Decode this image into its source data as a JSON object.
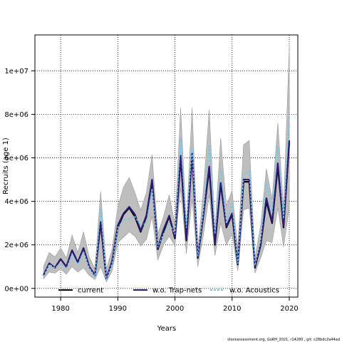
{
  "chart_data": {
    "type": "line",
    "xlabel": "Years",
    "ylabel": "Recruits (age 1)",
    "xlim": [
      1975.5,
      2021.5
    ],
    "ylim": [
      -400000,
      11650000
    ],
    "x_ticks": [
      1980,
      1990,
      2000,
      2010,
      2020
    ],
    "x_tick_labels": [
      "1980",
      "1990",
      "2000",
      "2010",
      "2020"
    ],
    "y_ticks": [
      0,
      2000000,
      4000000,
      6000000,
      8000000,
      10000000
    ],
    "y_tick_labels": [
      "0e+00",
      "2e+06",
      "4e+06",
      "6e+06",
      "8e+06",
      "1e+07"
    ],
    "grid": true,
    "legend_position": "bottom",
    "x": [
      1977,
      1978,
      1979,
      1980,
      1981,
      1982,
      1983,
      1984,
      1985,
      1986,
      1987,
      1988,
      1989,
      1990,
      1991,
      1992,
      1993,
      1994,
      1995,
      1996,
      1997,
      1998,
      1999,
      2000,
      2001,
      2002,
      2003,
      2004,
      2005,
      2006,
      2007,
      2008,
      2009,
      2010,
      2011,
      2012,
      2013,
      2014,
      2015,
      2016,
      2017,
      2018,
      2019,
      2020
    ],
    "band": {
      "color": "#bebebe",
      "lower": [
        450000,
        750000,
        700000,
        900000,
        650000,
        1000000,
        750000,
        950000,
        600000,
        400000,
        1000000,
        300000,
        800000,
        2100000,
        2350000,
        2600000,
        2400000,
        1950000,
        2250000,
        3300000,
        1300000,
        2000000,
        2400000,
        1950000,
        4600000,
        1600000,
        4100000,
        1000000,
        2500000,
        4300000,
        1500000,
        3000000,
        2000000,
        2500000,
        800000,
        3600000,
        3700000,
        700000,
        1400000,
        2200000,
        2100000,
        3700000,
        1900000,
        3700000
      ],
      "upper": [
        1000000,
        1650000,
        1450000,
        1850000,
        1400000,
        2450000,
        1650000,
        2600000,
        1450000,
        900000,
        4450000,
        900000,
        1800000,
        3750000,
        4650000,
        5100000,
        4400000,
        3600000,
        4400000,
        6150000,
        2500000,
        3300000,
        4300000,
        2950000,
        8300000,
        2900000,
        8300000,
        1700000,
        4600000,
        8200000,
        2700000,
        6900000,
        3800000,
        4500000,
        1800000,
        6600000,
        6800000,
        1400000,
        2900000,
        5500000,
        4100000,
        7600000,
        3700000,
        11000000
      ]
    },
    "series": [
      {
        "name": "current",
        "color": "#000000",
        "style": "solid",
        "values": [
          600000,
          1150000,
          950000,
          1350000,
          1000000,
          1750000,
          1200000,
          1850000,
          1000000,
          600000,
          3000000,
          450000,
          1200000,
          2800000,
          3400000,
          3700000,
          3300000,
          2600000,
          3300000,
          4900000,
          1800000,
          2600000,
          3300000,
          2300000,
          6000000,
          2200000,
          6200000,
          1400000,
          3400000,
          5500000,
          2000000,
          4800000,
          2800000,
          3400000,
          1100000,
          4900000,
          4900000,
          950000,
          2000000,
          4000000,
          3000000,
          5600000,
          2800000,
          6700000
        ]
      },
      {
        "name": "w.o. Trap-nets",
        "color": "#2e1a6e",
        "style": "solid",
        "values": [
          600000,
          1150000,
          950000,
          1350000,
          1000000,
          1750000,
          1200000,
          1850000,
          1000000,
          600000,
          3050000,
          450000,
          1250000,
          2900000,
          3450000,
          3750000,
          3400000,
          2650000,
          3350000,
          5000000,
          1850000,
          2700000,
          3350000,
          2350000,
          6100000,
          2250000,
          6250000,
          1450000,
          3450000,
          5600000,
          2050000,
          4850000,
          2850000,
          3450000,
          1150000,
          5000000,
          5000000,
          1000000,
          2050000,
          4150000,
          3050000,
          5750000,
          2850000,
          6800000
        ]
      },
      {
        "name": "w.o. Acoustics",
        "color": "#6ec6f0",
        "style": "dashed",
        "values": [
          550000,
          1100000,
          950000,
          1150000,
          900000,
          1600000,
          1100000,
          1700000,
          950000,
          550000,
          3700000,
          400000,
          1150000,
          2800000,
          3150000,
          3200000,
          3300000,
          2900000,
          3000000,
          4600000,
          1900000,
          2500000,
          3000000,
          2500000,
          6900000,
          2800000,
          6500000,
          1500000,
          3600000,
          6600000,
          2500000,
          5500000,
          3000000,
          3900000,
          1150000,
          5200000,
          5400000,
          1050000,
          2200000,
          4900000,
          3500000,
          6500000,
          3200000,
          7900000
        ]
      }
    ],
    "footer": "stockassessment.org, GoRH_2021, r14280 , git: c28bdc2a44ad"
  }
}
